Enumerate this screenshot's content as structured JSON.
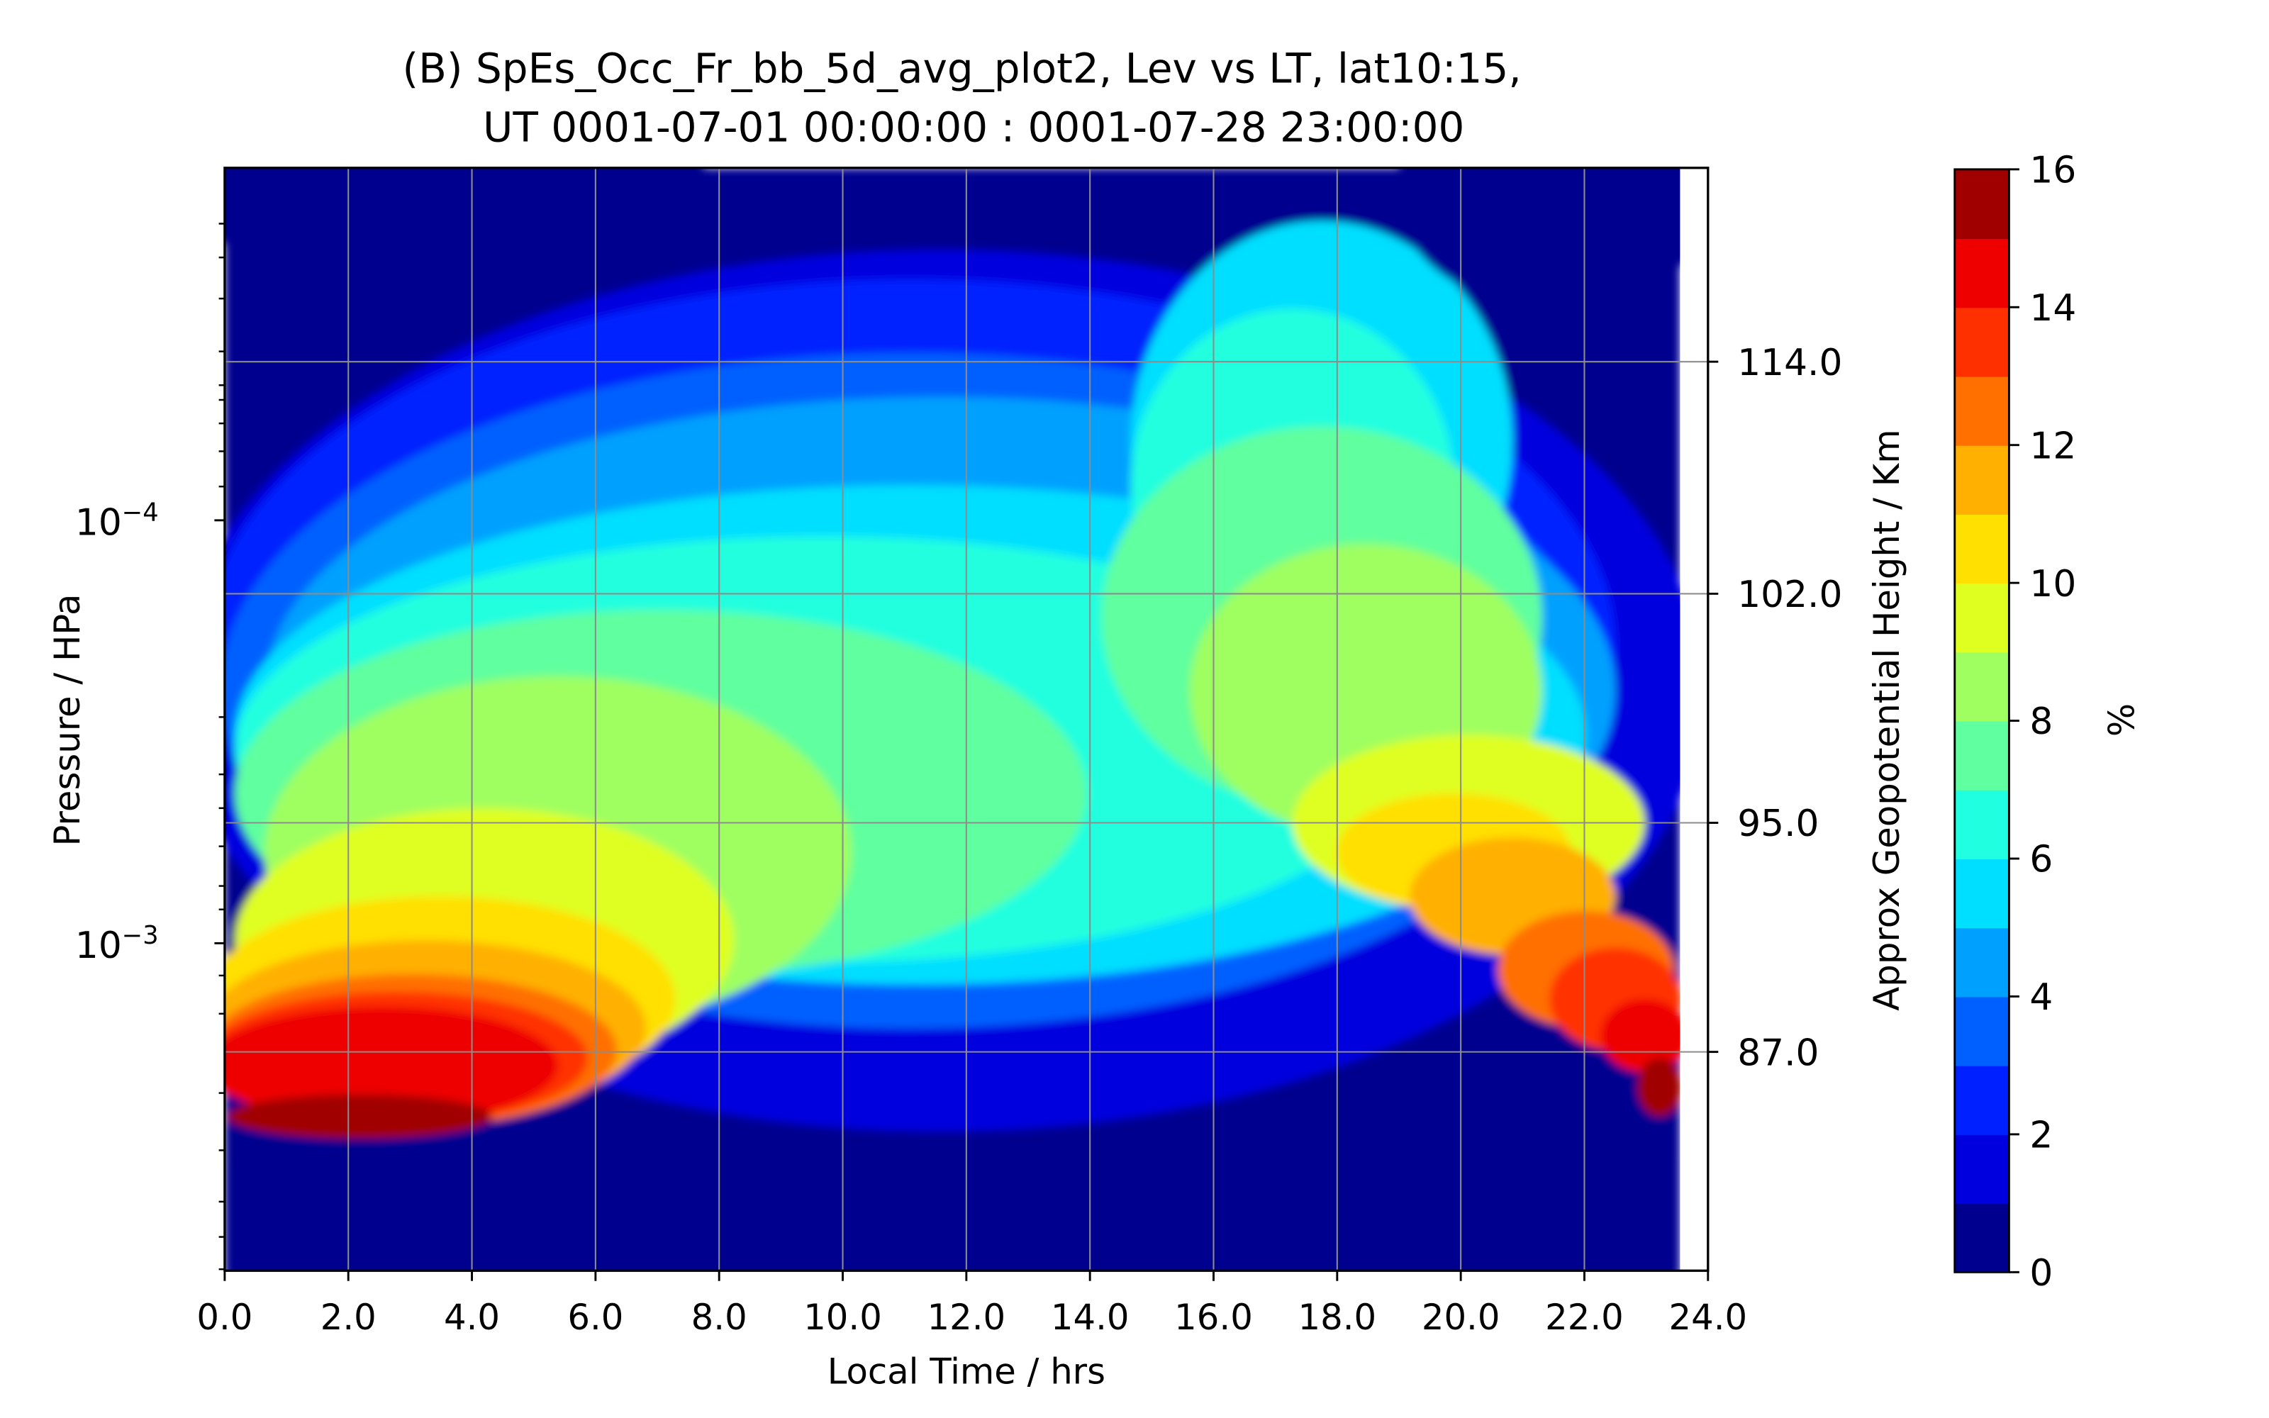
{
  "chart_data": {
    "type": "heatmap",
    "title_line1": "(B) SpEs_Occ_Fr_bb_5d_avg_plot2, Lev vs LT, lat10:15,",
    "title_line2": "UT 0001-07-01 00:00:00 : 0001-07-28 23:00:00",
    "xlabel": "Local Time / hrs",
    "ylabel": "Pressure / HPa",
    "y2label": "Approx Geopotential Height / Km",
    "colorbar_label": "%",
    "xlim": [
      0,
      24
    ],
    "x_ticks": [
      "0.0",
      "2.0",
      "4.0",
      "6.0",
      "8.0",
      "10.0",
      "12.0",
      "14.0",
      "16.0",
      "18.0",
      "20.0",
      "22.0",
      "24.0"
    ],
    "y_scale": "log",
    "y_ticks": [
      {
        "value": 0.0001,
        "label": "10^-4"
      },
      {
        "value": 0.001,
        "label": "10^-3"
      }
    ],
    "y2_ticks": [
      "114.0",
      "102.0",
      "95.0",
      "87.0"
    ],
    "colorbar": {
      "levels": [
        0,
        1,
        2,
        3,
        4,
        5,
        6,
        7,
        8,
        9,
        10,
        11,
        12,
        13,
        14,
        15,
        16
      ],
      "tick_labels": [
        "0",
        "2",
        "4",
        "6",
        "8",
        "10",
        "12",
        "14",
        "16"
      ],
      "colors": [
        "#00008f",
        "#0000df",
        "#0020ff",
        "#0060ff",
        "#00a0ff",
        "#00dfff",
        "#20ffdf",
        "#60ff9f",
        "#9fff60",
        "#dfff20",
        "#ffe000",
        "#ffb000",
        "#ff7000",
        "#ff3000",
        "#ee0000",
        "#a00000"
      ]
    },
    "grid": true
  }
}
